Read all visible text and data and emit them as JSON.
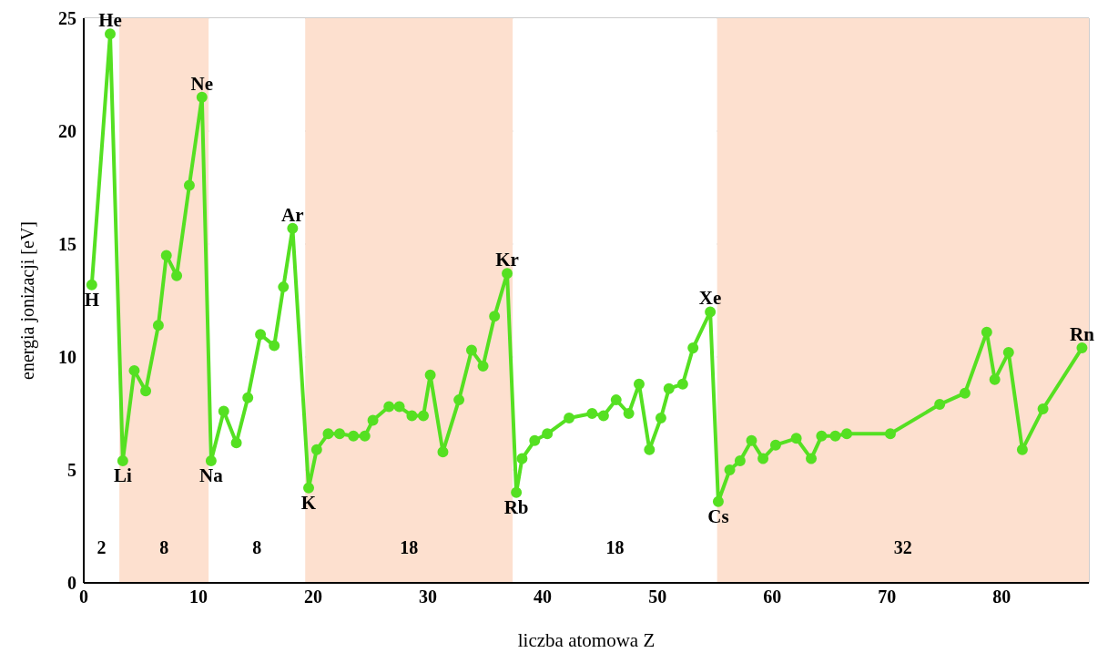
{
  "chart_data": {
    "type": "line",
    "xlabel": "liczba atomowa Z",
    "ylabel": "energia jonizacji [eV]",
    "xlim": [
      0,
      87.6
    ],
    "xticks": [
      0,
      10,
      20,
      30,
      40,
      50,
      60,
      70,
      80
    ],
    "ylim": [
      0,
      25
    ],
    "yticks": [
      0,
      5,
      10,
      15,
      20,
      25
    ],
    "grid": true,
    "marker": "circle",
    "line_style": "solid",
    "series": [
      {
        "color": "#55e022",
        "x": [
          0.7,
          2.3,
          3.4,
          4.4,
          5.4,
          6.5,
          7.2,
          8.1,
          9.2,
          10.3,
          11.1,
          12.2,
          13.3,
          14.3,
          15.4,
          16.6,
          17.4,
          18.2,
          19.6,
          20.3,
          21.3,
          22.3,
          23.5,
          24.5,
          25.2,
          26.6,
          27.5,
          28.6,
          29.6,
          30.2,
          31.3,
          32.7,
          33.8,
          34.8,
          35.8,
          36.9,
          37.7,
          38.2,
          39.3,
          40.4,
          42.3,
          44.3,
          45.3,
          46.4,
          47.5,
          48.4,
          49.3,
          50.3,
          51.0,
          52.2,
          53.1,
          54.6,
          55.3,
          56.3,
          57.2,
          58.2,
          59.2,
          60.3,
          62.1,
          63.4,
          64.3,
          65.5,
          66.5,
          70.3,
          74.6,
          76.8,
          78.7,
          79.4,
          80.6,
          81.8,
          83.6,
          87.0
        ],
        "values": [
          13.2,
          24.3,
          5.4,
          9.4,
          8.5,
          11.4,
          14.5,
          13.6,
          17.6,
          21.5,
          5.4,
          7.6,
          6.2,
          8.2,
          11.0,
          10.5,
          13.1,
          15.7,
          4.2,
          5.9,
          6.6,
          6.6,
          6.5,
          6.5,
          7.2,
          7.8,
          7.8,
          7.4,
          7.4,
          9.2,
          5.8,
          8.1,
          10.3,
          9.6,
          11.8,
          13.7,
          4.0,
          5.5,
          6.3,
          6.6,
          7.3,
          7.5,
          7.4,
          8.1,
          7.5,
          8.8,
          5.9,
          7.3,
          8.6,
          8.8,
          10.4,
          12.0,
          3.6,
          5.0,
          5.4,
          6.3,
          5.5,
          6.1,
          6.4,
          5.5,
          6.5,
          6.5,
          6.6,
          6.6,
          7.9,
          8.4,
          11.1,
          9.0,
          10.2,
          5.9,
          7.7,
          10.4
        ]
      }
    ],
    "bands": [
      {
        "axis": "x",
        "from": 0,
        "to": 3.1,
        "label": "2",
        "color": "#ffffff"
      },
      {
        "axis": "x",
        "from": 3.1,
        "to": 10.9,
        "label": "8",
        "color": "#fde0cf"
      },
      {
        "axis": "x",
        "from": 10.9,
        "to": 19.3,
        "label": "8",
        "color": "#ffffff"
      },
      {
        "axis": "x",
        "from": 19.3,
        "to": 37.4,
        "label": "18",
        "color": "#fde0cf"
      },
      {
        "axis": "x",
        "from": 37.4,
        "to": 55.2,
        "label": "18",
        "color": "#ffffff"
      },
      {
        "axis": "x",
        "from": 55.2,
        "to": 87.6,
        "label": "32",
        "color": "#fde0cf"
      }
    ],
    "annotations": [
      {
        "text": "H",
        "x": 0.7,
        "y": 13.2
      },
      {
        "text": "He",
        "x": 2.3,
        "y": 24.3
      },
      {
        "text": "Li",
        "x": 3.4,
        "y": 5.4
      },
      {
        "text": "Ne",
        "x": 10.3,
        "y": 21.5
      },
      {
        "text": "Na",
        "x": 11.1,
        "y": 5.4
      },
      {
        "text": "Ar",
        "x": 18.2,
        "y": 15.7
      },
      {
        "text": "K",
        "x": 19.6,
        "y": 4.2
      },
      {
        "text": "Kr",
        "x": 36.9,
        "y": 13.7
      },
      {
        "text": "Rb",
        "x": 37.7,
        "y": 4.0
      },
      {
        "text": "Xe",
        "x": 54.6,
        "y": 12.0
      },
      {
        "text": "Cs",
        "x": 55.3,
        "y": 3.6
      },
      {
        "text": "Rn",
        "x": 87.0,
        "y": 10.4
      }
    ]
  }
}
